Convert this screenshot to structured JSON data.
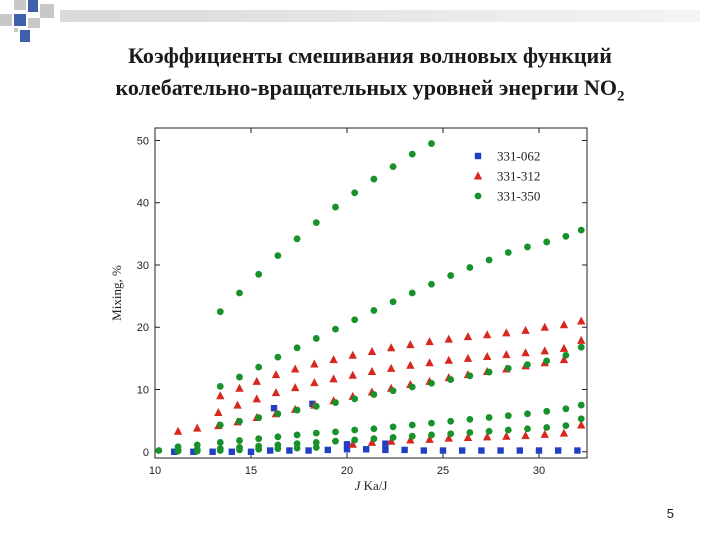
{
  "slide": {
    "title_line1": "Коэффициенты смешивания волновых функций",
    "title_line2_main": "колебательно-вращательных уровней энергии NO",
    "title_line2_sub": "2",
    "number": "5"
  },
  "colors": {
    "331-062": "#1f3fc4",
    "331-312": "#d8271f",
    "331-350": "#17912a",
    "deco_gray": "#c8c8c8",
    "deco_blue": "#3f5fa8"
  },
  "chart_data": {
    "type": "scatter",
    "title": "",
    "xlabel": "J",
    "xlabel_rest": "Ka/J",
    "ylabel": "Mixing, %",
    "xlim": [
      10,
      32.5
    ],
    "ylim": [
      -1,
      52
    ],
    "xticks": [
      10,
      15,
      20,
      25,
      30
    ],
    "yticks": [
      0,
      10,
      20,
      30,
      40,
      50
    ],
    "grid": false,
    "legend_position": "top-right",
    "series": [
      {
        "name": "331-062",
        "marker": "square",
        "points": [
          [
            11,
            0
          ],
          [
            12,
            0
          ],
          [
            13,
            0
          ],
          [
            14,
            0
          ],
          [
            15,
            0
          ],
          [
            16.2,
            7
          ],
          [
            18.2,
            7.7
          ],
          [
            16,
            0.2
          ],
          [
            17,
            0.2
          ],
          [
            18,
            0.2
          ],
          [
            19,
            0.3
          ],
          [
            20,
            0.4
          ],
          [
            21,
            0.4
          ],
          [
            22,
            0.3
          ],
          [
            23,
            0.3
          ],
          [
            24,
            0.2
          ],
          [
            25,
            0.2
          ],
          [
            26,
            0.2
          ],
          [
            27,
            0.2
          ],
          [
            28,
            0.2
          ],
          [
            29,
            0.2
          ],
          [
            30,
            0.2
          ],
          [
            31,
            0.2
          ],
          [
            32,
            0.2
          ],
          [
            20,
            1.2
          ],
          [
            22,
            1.3
          ]
        ]
      },
      {
        "name": "331-312",
        "marker": "triangle",
        "points": [
          [
            11.2,
            3.3
          ],
          [
            12.2,
            3.8
          ],
          [
            13.4,
            9
          ],
          [
            14.4,
            10.2
          ],
          [
            15.3,
            11.3
          ],
          [
            16.3,
            12.4
          ],
          [
            17.3,
            13.3
          ],
          [
            18.3,
            14.1
          ],
          [
            19.3,
            14.8
          ],
          [
            20.3,
            15.5
          ],
          [
            21.3,
            16.1
          ],
          [
            22.3,
            16.7
          ],
          [
            23.3,
            17.2
          ],
          [
            24.3,
            17.7
          ],
          [
            25.3,
            18.1
          ],
          [
            26.3,
            18.5
          ],
          [
            27.3,
            18.8
          ],
          [
            28.3,
            19.1
          ],
          [
            29.3,
            19.5
          ],
          [
            30.3,
            20
          ],
          [
            31.3,
            20.4
          ],
          [
            32.2,
            21
          ],
          [
            13.3,
            6.3
          ],
          [
            14.3,
            7.5
          ],
          [
            15.3,
            8.5
          ],
          [
            16.3,
            9.5
          ],
          [
            17.3,
            10.3
          ],
          [
            18.3,
            11.1
          ],
          [
            19.3,
            11.7
          ],
          [
            20.3,
            12.3
          ],
          [
            21.3,
            12.9
          ],
          [
            22.3,
            13.4
          ],
          [
            23.3,
            13.9
          ],
          [
            24.3,
            14.3
          ],
          [
            25.3,
            14.7
          ],
          [
            26.3,
            15
          ],
          [
            27.3,
            15.3
          ],
          [
            28.3,
            15.6
          ],
          [
            29.3,
            15.9
          ],
          [
            30.3,
            16.2
          ],
          [
            31.3,
            16.6
          ],
          [
            32.2,
            17.9
          ],
          [
            13.3,
            4.2
          ],
          [
            14.3,
            4.8
          ],
          [
            15.3,
            5.5
          ],
          [
            16.3,
            6.1
          ],
          [
            17.3,
            6.8
          ],
          [
            18.3,
            7.5
          ],
          [
            19.3,
            8.2
          ],
          [
            20.3,
            8.9
          ],
          [
            21.3,
            9.6
          ],
          [
            22.3,
            10.2
          ],
          [
            23.3,
            10.8
          ],
          [
            24.3,
            11.3
          ],
          [
            25.3,
            11.9
          ],
          [
            26.3,
            12.4
          ],
          [
            27.3,
            12.9
          ],
          [
            28.3,
            13.3
          ],
          [
            29.3,
            13.8
          ],
          [
            30.3,
            14.3
          ],
          [
            31.3,
            14.8
          ],
          [
            20.3,
            1.2
          ],
          [
            21.3,
            1.5
          ],
          [
            22.3,
            1.7
          ],
          [
            23.3,
            1.9
          ],
          [
            24.3,
            2
          ],
          [
            25.3,
            2.2
          ],
          [
            26.3,
            2.3
          ],
          [
            27.3,
            2.4
          ],
          [
            28.3,
            2.5
          ],
          [
            29.3,
            2.6
          ],
          [
            30.3,
            2.8
          ],
          [
            31.3,
            3
          ],
          [
            32.2,
            4.3
          ]
        ]
      },
      {
        "name": "331-350",
        "marker": "circle",
        "points": [
          [
            13.4,
            22.5
          ],
          [
            14.4,
            25.5
          ],
          [
            15.4,
            28.5
          ],
          [
            16.4,
            31.5
          ],
          [
            17.4,
            34.2
          ],
          [
            18.4,
            36.8
          ],
          [
            19.4,
            39.3
          ],
          [
            20.4,
            41.6
          ],
          [
            21.4,
            43.8
          ],
          [
            22.4,
            45.8
          ],
          [
            23.4,
            47.8
          ],
          [
            24.4,
            49.5
          ],
          [
            13.4,
            10.5
          ],
          [
            14.4,
            12
          ],
          [
            15.4,
            13.6
          ],
          [
            16.4,
            15.2
          ],
          [
            17.4,
            16.7
          ],
          [
            18.4,
            18.2
          ],
          [
            19.4,
            19.7
          ],
          [
            20.4,
            21.2
          ],
          [
            21.4,
            22.7
          ],
          [
            22.4,
            24.1
          ],
          [
            23.4,
            25.5
          ],
          [
            24.4,
            26.9
          ],
          [
            25.4,
            28.3
          ],
          [
            26.4,
            29.6
          ],
          [
            27.4,
            30.8
          ],
          [
            28.4,
            32
          ],
          [
            29.4,
            32.9
          ],
          [
            30.4,
            33.7
          ],
          [
            31.4,
            34.6
          ],
          [
            32.2,
            35.6
          ],
          [
            13.4,
            4.3
          ],
          [
            14.4,
            4.9
          ],
          [
            15.4,
            5.5
          ],
          [
            16.4,
            6.1
          ],
          [
            17.4,
            6.7
          ],
          [
            18.4,
            7.3
          ],
          [
            19.4,
            7.9
          ],
          [
            20.4,
            8.5
          ],
          [
            21.4,
            9.2
          ],
          [
            22.4,
            9.8
          ],
          [
            23.4,
            10.4
          ],
          [
            24.4,
            11
          ],
          [
            25.4,
            11.6
          ],
          [
            26.4,
            12.2
          ],
          [
            27.4,
            12.8
          ],
          [
            28.4,
            13.4
          ],
          [
            29.4,
            14
          ],
          [
            30.4,
            14.6
          ],
          [
            31.4,
            15.5
          ],
          [
            32.2,
            16.8
          ],
          [
            11.2,
            0.8
          ],
          [
            12.2,
            1.1
          ],
          [
            13.4,
            1.5
          ],
          [
            14.4,
            1.8
          ],
          [
            15.4,
            2.1
          ],
          [
            16.4,
            2.4
          ],
          [
            17.4,
            2.7
          ],
          [
            18.4,
            3
          ],
          [
            19.4,
            3.2
          ],
          [
            20.4,
            3.5
          ],
          [
            21.4,
            3.7
          ],
          [
            22.4,
            4
          ],
          [
            23.4,
            4.3
          ],
          [
            24.4,
            4.6
          ],
          [
            25.4,
            4.9
          ],
          [
            26.4,
            5.2
          ],
          [
            27.4,
            5.5
          ],
          [
            28.4,
            5.8
          ],
          [
            29.4,
            6.1
          ],
          [
            30.4,
            6.5
          ],
          [
            31.4,
            6.9
          ],
          [
            32.2,
            7.5
          ],
          [
            10.2,
            0.2
          ],
          [
            11.2,
            0.3
          ],
          [
            12.2,
            0.4
          ],
          [
            13.4,
            0.5
          ],
          [
            14.4,
            0.7
          ],
          [
            15.4,
            0.9
          ],
          [
            16.4,
            1.1
          ],
          [
            17.4,
            1.3
          ],
          [
            18.4,
            1.5
          ],
          [
            19.4,
            1.7
          ],
          [
            20.4,
            1.9
          ],
          [
            21.4,
            2.1
          ],
          [
            22.4,
            2.3
          ],
          [
            23.4,
            2.5
          ],
          [
            24.4,
            2.7
          ],
          [
            25.4,
            2.9
          ],
          [
            26.4,
            3.1
          ],
          [
            27.4,
            3.3
          ],
          [
            28.4,
            3.5
          ],
          [
            29.4,
            3.7
          ],
          [
            30.4,
            3.9
          ],
          [
            31.4,
            4.2
          ],
          [
            32.2,
            5.3
          ],
          [
            11.2,
            0.1
          ],
          [
            12.2,
            0.1
          ],
          [
            13.4,
            0.2
          ],
          [
            14.4,
            0.3
          ],
          [
            15.4,
            0.4
          ],
          [
            16.4,
            0.5
          ],
          [
            17.4,
            0.6
          ],
          [
            18.4,
            0.7
          ]
        ]
      }
    ]
  }
}
